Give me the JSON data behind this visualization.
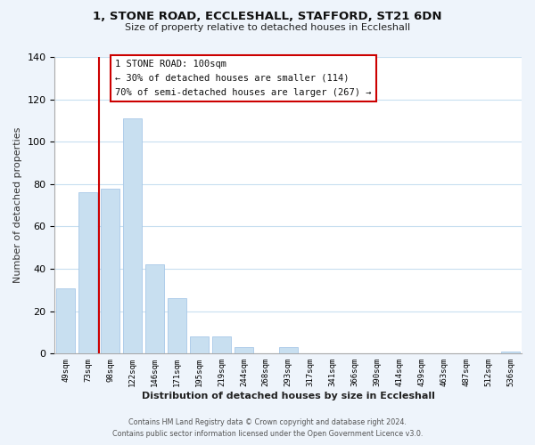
{
  "title": "1, STONE ROAD, ECCLESHALL, STAFFORD, ST21 6DN",
  "subtitle": "Size of property relative to detached houses in Eccleshall",
  "xlabel": "Distribution of detached houses by size in Eccleshall",
  "ylabel": "Number of detached properties",
  "bar_labels": [
    "49sqm",
    "73sqm",
    "98sqm",
    "122sqm",
    "146sqm",
    "171sqm",
    "195sqm",
    "219sqm",
    "244sqm",
    "268sqm",
    "293sqm",
    "317sqm",
    "341sqm",
    "366sqm",
    "390sqm",
    "414sqm",
    "439sqm",
    "463sqm",
    "487sqm",
    "512sqm",
    "536sqm"
  ],
  "bar_values": [
    31,
    76,
    78,
    111,
    42,
    26,
    8,
    8,
    3,
    0,
    3,
    0,
    0,
    0,
    0,
    0,
    0,
    0,
    0,
    0,
    1
  ],
  "bar_color": "#c8dff0",
  "bar_edge_color": "#a8c8e8",
  "ylim": [
    0,
    140
  ],
  "yticks": [
    0,
    20,
    40,
    60,
    80,
    100,
    120,
    140
  ],
  "vline_color": "#cc0000",
  "vline_bar_index": 2,
  "annotation_line0": "1 STONE ROAD: 100sqm",
  "annotation_line1": "← 30% of detached houses are smaller (114)",
  "annotation_line2": "70% of semi-detached houses are larger (267) →",
  "annotation_box_color": "#ffffff",
  "annotation_box_edge": "#cc0000",
  "footer1": "Contains HM Land Registry data © Crown copyright and database right 2024.",
  "footer2": "Contains public sector information licensed under the Open Government Licence v3.0.",
  "bg_color": "#eef4fb",
  "plot_bg_color": "#ffffff",
  "grid_color": "#c8dff0"
}
